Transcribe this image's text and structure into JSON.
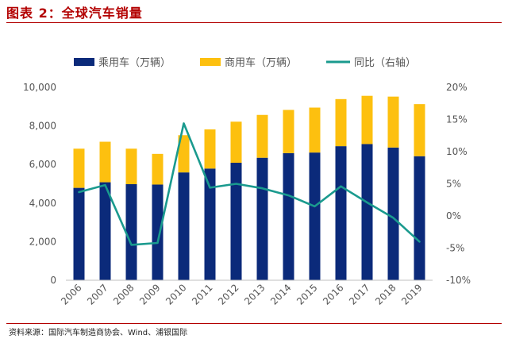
{
  "figure": {
    "title": "图表 2：全球汽车销量",
    "source": "资料来源：国际汽车制造商协会、Wind、浦银国际"
  },
  "colors": {
    "passenger": "#0b2a7a",
    "commercial": "#fdc00f",
    "yoy": "#1a9a8e",
    "title": "#b30000"
  },
  "chart_data": {
    "type": "bar",
    "stacked": true,
    "title": "",
    "categories": [
      "2006",
      "2007",
      "2008",
      "2009",
      "2010",
      "2011",
      "2012",
      "2013",
      "2014",
      "2015",
      "2016",
      "2017",
      "2018",
      "2019"
    ],
    "series": [
      {
        "name": "乘用车（万辆）",
        "kind": "bar",
        "axis": "left",
        "values": [
          4790,
          5080,
          4980,
          4960,
          5590,
          5790,
          6090,
          6350,
          6590,
          6620,
          6950,
          7060,
          6880,
          6430
        ]
      },
      {
        "name": "商用车（万辆）",
        "kind": "bar",
        "axis": "left",
        "values": [
          2030,
          2100,
          1840,
          1590,
          1930,
          2030,
          2130,
          2220,
          2240,
          2330,
          2440,
          2500,
          2640,
          2700
        ]
      },
      {
        "name": "同比（右轴）",
        "kind": "line",
        "axis": "right",
        "unit": "%",
        "values": [
          3.7,
          4.8,
          -4.5,
          -4.2,
          14.4,
          4.4,
          5.0,
          4.3,
          3.2,
          1.5,
          4.6,
          2.1,
          -0.3,
          -4.0
        ]
      }
    ],
    "yleft": {
      "lim": [
        0,
        10000
      ],
      "ticks": [
        "0",
        "2,000",
        "4,000",
        "6,000",
        "8,000",
        "10,000"
      ]
    },
    "yright": {
      "lim": [
        -10,
        20
      ],
      "ticks": [
        "-10%",
        "-5%",
        "0%",
        "5%",
        "10%",
        "15%",
        "20%"
      ]
    },
    "legend": "top",
    "grid": false
  }
}
